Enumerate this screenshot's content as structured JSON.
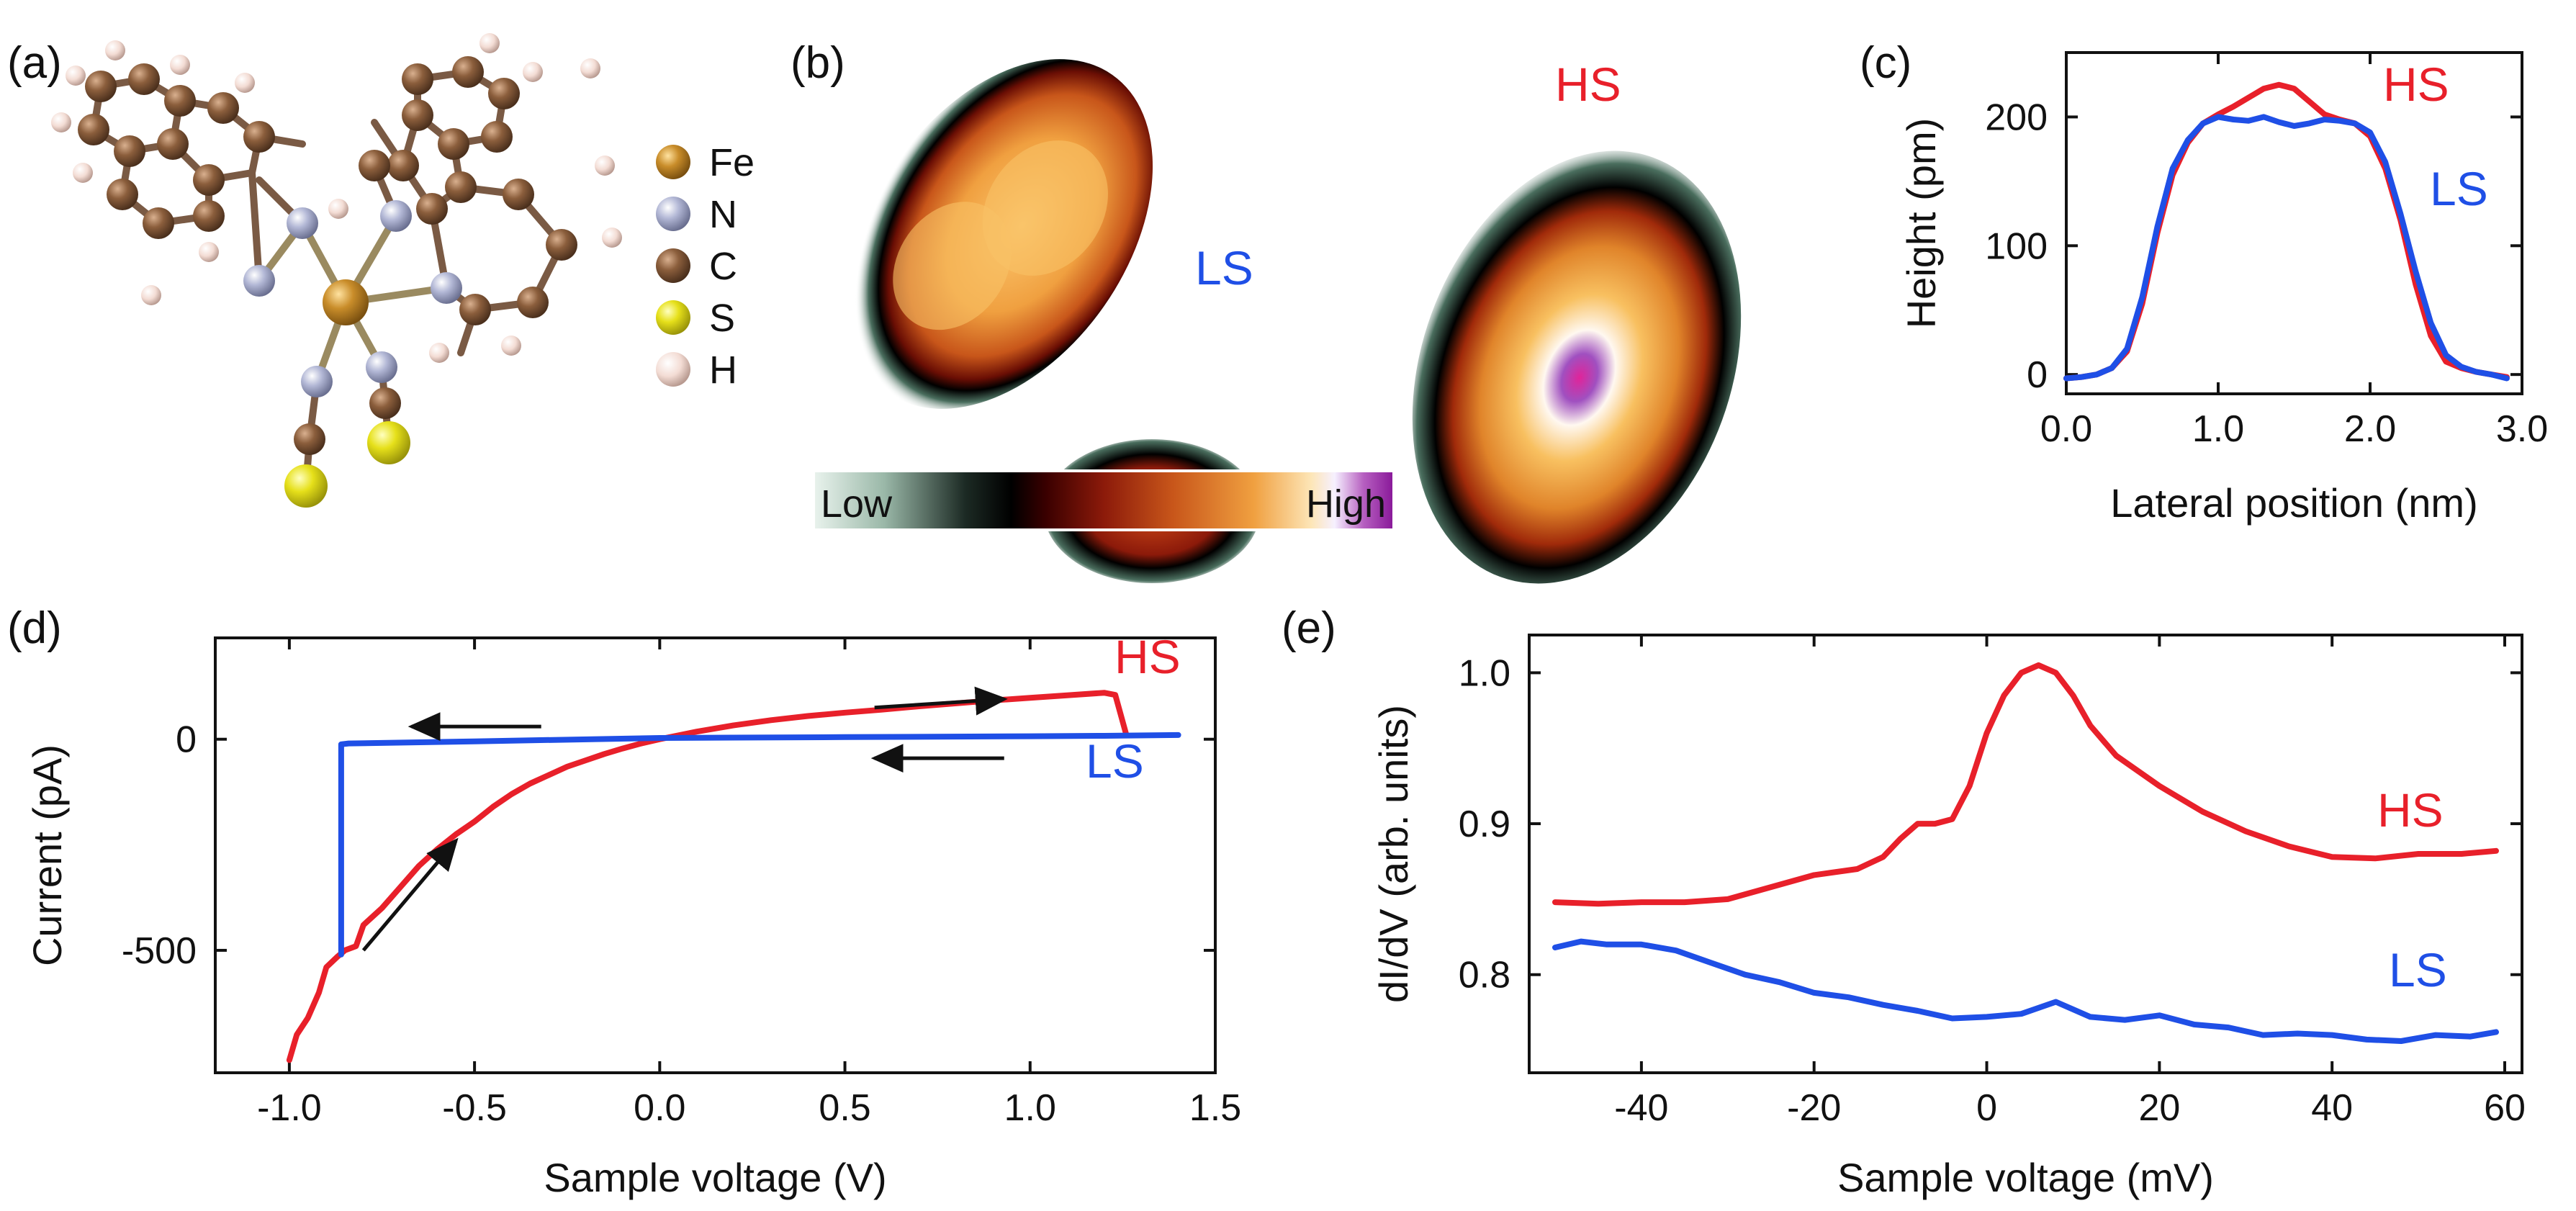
{
  "panels": {
    "a": {
      "label": "(a)",
      "legend": [
        {
          "symbol": "Fe",
          "color": "#c98d2a"
        },
        {
          "symbol": "N",
          "color": "#b3b8d6"
        },
        {
          "symbol": "C",
          "color": "#8b5e3c"
        },
        {
          "symbol": "S",
          "color": "#e6e01a"
        },
        {
          "symbol": "H",
          "color": "#f3dcd4"
        }
      ]
    },
    "b": {
      "label": "(b)",
      "ls_label": "LS",
      "hs_label": "HS",
      "colorbar_low": "Low",
      "colorbar_high": "High"
    }
  },
  "series_colors": {
    "HS": "#e8202a",
    "LS": "#1f4fe6"
  },
  "chart_data": [
    {
      "id": "c",
      "panel_label": "(c)",
      "type": "line",
      "xlabel": "Lateral position (nm)",
      "ylabel": "Height (pm)",
      "xlim": [
        0,
        3.0
      ],
      "ylim": [
        -15,
        250
      ],
      "xticks": [
        0.0,
        1.0,
        2.0,
        3.0
      ],
      "xtick_labels": [
        "0.0",
        "1.0",
        "2.0",
        "3.0"
      ],
      "yticks": [
        0,
        100,
        200
      ],
      "ytick_labels": [
        "0",
        "100",
        "200"
      ],
      "series": [
        {
          "name": "HS",
          "label": "HS",
          "x": [
            0.0,
            0.1,
            0.2,
            0.3,
            0.4,
            0.5,
            0.6,
            0.7,
            0.8,
            0.9,
            1.0,
            1.1,
            1.2,
            1.3,
            1.4,
            1.5,
            1.6,
            1.7,
            1.8,
            1.9,
            2.0,
            2.1,
            2.2,
            2.3,
            2.4,
            2.5,
            2.6,
            2.7,
            2.8,
            2.9
          ],
          "y": [
            -3,
            -2,
            0,
            5,
            18,
            55,
            110,
            155,
            180,
            195,
            202,
            208,
            215,
            222,
            225,
            222,
            212,
            202,
            198,
            195,
            185,
            160,
            120,
            70,
            30,
            10,
            5,
            2,
            0,
            -2
          ]
        },
        {
          "name": "LS",
          "label": "LS",
          "x": [
            0.0,
            0.1,
            0.2,
            0.3,
            0.4,
            0.5,
            0.6,
            0.7,
            0.8,
            0.9,
            1.0,
            1.1,
            1.2,
            1.3,
            1.4,
            1.5,
            1.6,
            1.7,
            1.8,
            1.9,
            2.0,
            2.1,
            2.2,
            2.3,
            2.4,
            2.5,
            2.6,
            2.7,
            2.8,
            2.9
          ],
          "y": [
            -3,
            -2,
            0,
            5,
            20,
            60,
            115,
            160,
            182,
            195,
            200,
            198,
            197,
            200,
            196,
            193,
            195,
            198,
            197,
            195,
            188,
            165,
            125,
            80,
            40,
            15,
            6,
            2,
            0,
            -3
          ]
        }
      ]
    },
    {
      "id": "d",
      "panel_label": "(d)",
      "type": "line",
      "xlabel": "Sample voltage (V)",
      "ylabel": "Current (pA)",
      "xlim": [
        -1.2,
        1.5
      ],
      "ylim": [
        -790,
        240
      ],
      "xticks": [
        -1.0,
        -0.5,
        0.0,
        0.5,
        1.0,
        1.5
      ],
      "xtick_labels": [
        "-1.0",
        "-0.5",
        "0.0",
        "0.5",
        "1.0",
        "1.5"
      ],
      "yticks": [
        0,
        -500
      ],
      "ytick_labels": [
        "0",
        "-500"
      ],
      "series": [
        {
          "name": "HS",
          "label": "HS",
          "x": [
            -1.0,
            -0.98,
            -0.95,
            -0.92,
            -0.9,
            -0.87,
            -0.85,
            -0.82,
            -0.8,
            -0.75,
            -0.7,
            -0.65,
            -0.6,
            -0.55,
            -0.5,
            -0.45,
            -0.4,
            -0.35,
            -0.3,
            -0.25,
            -0.2,
            -0.15,
            -0.1,
            -0.05,
            0.0,
            0.1,
            0.2,
            0.3,
            0.4,
            0.5,
            0.6,
            0.7,
            0.8,
            0.9,
            1.0,
            1.1,
            1.2,
            1.23,
            1.26
          ],
          "y": [
            -760,
            -700,
            -660,
            -600,
            -540,
            -515,
            -500,
            -490,
            -440,
            -400,
            -350,
            -300,
            -260,
            -225,
            -195,
            -160,
            -130,
            -105,
            -85,
            -65,
            -50,
            -35,
            -22,
            -10,
            0,
            18,
            33,
            45,
            55,
            63,
            70,
            78,
            85,
            92,
            98,
            104,
            110,
            105,
            10
          ]
        },
        {
          "name": "LS",
          "label": "LS",
          "x": [
            1.4,
            1.2,
            1.0,
            0.5,
            0.0,
            -0.5,
            -0.84,
            -0.86,
            -0.86
          ],
          "y": [
            10,
            8,
            7,
            5,
            3,
            -5,
            -10,
            -12,
            -510
          ]
        }
      ],
      "annotations": [
        "arrow-forward-lower",
        "arrow-forward-upper",
        "arrow-reverse-upper",
        "arrow-reverse-lower"
      ]
    },
    {
      "id": "e",
      "panel_label": "(e)",
      "type": "line",
      "xlabel": "Sample voltage (mV)",
      "ylabel": "dI/dV (arb. units)",
      "xlim": [
        -53,
        62
      ],
      "ylim": [
        0.735,
        1.025
      ],
      "xticks": [
        -40,
        -20,
        0,
        20,
        40,
        60
      ],
      "xtick_labels": [
        "-40",
        "-20",
        "0",
        "20",
        "40",
        "60"
      ],
      "yticks": [
        0.8,
        0.9,
        1.0
      ],
      "ytick_labels": [
        "0.8",
        "0.9",
        "1.0"
      ],
      "series": [
        {
          "name": "HS",
          "label": "HS",
          "x": [
            -50,
            -45,
            -40,
            -35,
            -30,
            -25,
            -20,
            -15,
            -12,
            -10,
            -8,
            -6,
            -4,
            -2,
            0,
            2,
            4,
            6,
            8,
            10,
            12,
            15,
            20,
            25,
            30,
            35,
            40,
            45,
            50,
            55,
            59
          ],
          "y": [
            0.848,
            0.847,
            0.848,
            0.848,
            0.85,
            0.858,
            0.866,
            0.87,
            0.878,
            0.89,
            0.9,
            0.9,
            0.903,
            0.925,
            0.96,
            0.985,
            1.0,
            1.005,
            1.0,
            0.985,
            0.965,
            0.945,
            0.925,
            0.908,
            0.895,
            0.885,
            0.878,
            0.877,
            0.88,
            0.88,
            0.882
          ]
        },
        {
          "name": "LS",
          "label": "LS",
          "x": [
            -50,
            -47,
            -44,
            -40,
            -36,
            -32,
            -28,
            -24,
            -20,
            -16,
            -12,
            -8,
            -4,
            0,
            4,
            8,
            12,
            16,
            20,
            24,
            28,
            32,
            36,
            40,
            44,
            48,
            52,
            56,
            59
          ],
          "y": [
            0.818,
            0.822,
            0.82,
            0.82,
            0.816,
            0.808,
            0.8,
            0.795,
            0.788,
            0.785,
            0.78,
            0.776,
            0.771,
            0.772,
            0.774,
            0.782,
            0.772,
            0.77,
            0.773,
            0.767,
            0.765,
            0.76,
            0.761,
            0.76,
            0.757,
            0.756,
            0.76,
            0.759,
            0.762
          ]
        }
      ]
    }
  ]
}
